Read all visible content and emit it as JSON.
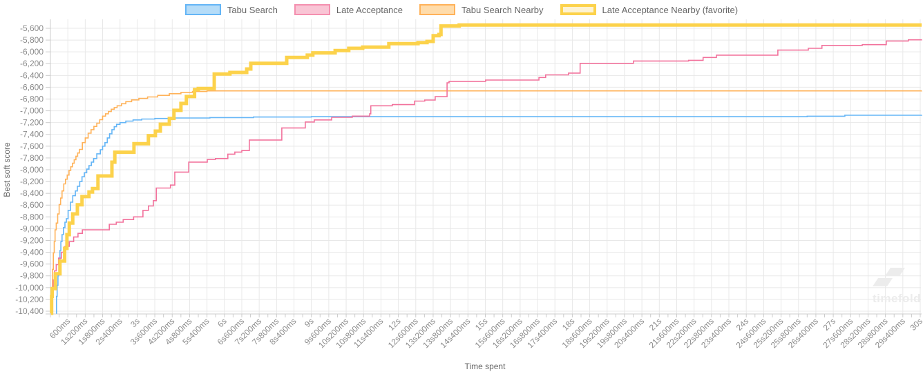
{
  "legend": {
    "items": [
      {
        "label": "Tabu Search",
        "border": "#64b5f6",
        "fill": "#b5dcf8",
        "thick": false
      },
      {
        "label": "Late Acceptance",
        "border": "#f48faf",
        "fill": "#f9c5d5",
        "thick": false
      },
      {
        "label": "Tabu Search Nearby",
        "border": "#ffb259",
        "fill": "#ffdcab",
        "thick": false
      },
      {
        "label": "Late Acceptance Nearby (favorite)",
        "border": "#fcd24b",
        "fill": "#fdf3d2",
        "thick": true
      }
    ]
  },
  "watermark": {
    "text": "timefold"
  },
  "chart_data": {
    "type": "line",
    "subtype": "step-after",
    "title": "",
    "xlabel": "Time spent",
    "ylabel": "Best soft score",
    "grid": true,
    "legend_position": "top",
    "x_axis": {
      "min_seconds": 0,
      "max_seconds": 30,
      "label_interval_ms": 600,
      "tick_labels": [
        "600ms",
        "1s200ms",
        "1s800ms",
        "2s400ms",
        "3s",
        "3s600ms",
        "4s200ms",
        "4s800ms",
        "5s400ms",
        "6s",
        "6s600ms",
        "7s200ms",
        "7s800ms",
        "8s400ms",
        "9s",
        "9s600ms",
        "10s200ms",
        "10s800ms",
        "11s400ms",
        "12s",
        "12s600ms",
        "13s200ms",
        "13s800ms",
        "14s400ms",
        "15s",
        "15s600ms",
        "16s200ms",
        "16s800ms",
        "17s400ms",
        "18s",
        "18s600ms",
        "19s200ms",
        "19s800ms",
        "20s400ms",
        "21s",
        "21s600ms",
        "22s200ms",
        "22s800ms",
        "23s400ms",
        "24s",
        "24s600ms",
        "25s200ms",
        "25s800ms",
        "26s400ms",
        "27s",
        "27s600ms",
        "28s200ms",
        "28s800ms",
        "29s400ms",
        "30s"
      ]
    },
    "y_axis": {
      "max": -5600,
      "min": -10400,
      "step": 200,
      "tick_labels": [
        "-5,600",
        "-5,800",
        "-6,000",
        "-6,200",
        "-6,400",
        "-6,600",
        "-6,800",
        "-7,000",
        "-7,200",
        "-7,400",
        "-7,600",
        "-7,800",
        "-8,000",
        "-8,200",
        "-8,400",
        "-8,600",
        "-8,800",
        "-9,000",
        "-9,200",
        "-9,400",
        "-9,600",
        "-9,800",
        "-10,000",
        "-10,200",
        "-10,400"
      ]
    },
    "series": [
      {
        "name": "Tabu Search Nearby",
        "color": "#ffb259",
        "width": 1.6,
        "points": [
          [
            0.02,
            -10440
          ],
          [
            0.05,
            -10000
          ],
          [
            0.07,
            -9690
          ],
          [
            0.1,
            -9410
          ],
          [
            0.13,
            -9220
          ],
          [
            0.16,
            -9020
          ],
          [
            0.2,
            -8905
          ],
          [
            0.25,
            -8750
          ],
          [
            0.3,
            -8590
          ],
          [
            0.35,
            -8480
          ],
          [
            0.4,
            -8360
          ],
          [
            0.46,
            -8240
          ],
          [
            0.52,
            -8160
          ],
          [
            0.58,
            -8090
          ],
          [
            0.64,
            -8010
          ],
          [
            0.7,
            -7950
          ],
          [
            0.76,
            -7890
          ],
          [
            0.82,
            -7830
          ],
          [
            0.88,
            -7770
          ],
          [
            0.94,
            -7715
          ],
          [
            1.0,
            -7655
          ],
          [
            1.1,
            -7540
          ],
          [
            1.2,
            -7460
          ],
          [
            1.3,
            -7380
          ],
          [
            1.4,
            -7320
          ],
          [
            1.5,
            -7265
          ],
          [
            1.6,
            -7210
          ],
          [
            1.7,
            -7150
          ],
          [
            1.8,
            -7090
          ],
          [
            1.9,
            -7050
          ],
          [
            2.0,
            -7012
          ],
          [
            2.1,
            -6973
          ],
          [
            2.2,
            -6945
          ],
          [
            2.3,
            -6915
          ],
          [
            2.45,
            -6880
          ],
          [
            2.6,
            -6845
          ],
          [
            2.8,
            -6815
          ],
          [
            3.05,
            -6790
          ],
          [
            3.35,
            -6765
          ],
          [
            3.7,
            -6738
          ],
          [
            4.1,
            -6710
          ],
          [
            4.5,
            -6688
          ],
          [
            4.9,
            -6672
          ],
          [
            5.4,
            -6662
          ],
          [
            30.1,
            -6660
          ]
        ]
      },
      {
        "name": "Tabu Search",
        "color": "#64b5f6",
        "width": 1.6,
        "points": [
          [
            0.19,
            -10440
          ],
          [
            0.21,
            -10150
          ],
          [
            0.23,
            -9960
          ],
          [
            0.26,
            -9800
          ],
          [
            0.29,
            -9570
          ],
          [
            0.33,
            -9370
          ],
          [
            0.36,
            -9220
          ],
          [
            0.4,
            -9100
          ],
          [
            0.45,
            -8980
          ],
          [
            0.5,
            -8890
          ],
          [
            0.55,
            -8830
          ],
          [
            0.61,
            -8690
          ],
          [
            0.69,
            -8550
          ],
          [
            0.77,
            -8440
          ],
          [
            0.86,
            -8360
          ],
          [
            0.93,
            -8280
          ],
          [
            1.01,
            -8200
          ],
          [
            1.09,
            -8120
          ],
          [
            1.17,
            -8050
          ],
          [
            1.25,
            -7990
          ],
          [
            1.33,
            -7930
          ],
          [
            1.41,
            -7870
          ],
          [
            1.49,
            -7810
          ],
          [
            1.6,
            -7730
          ],
          [
            1.72,
            -7660
          ],
          [
            1.8,
            -7600
          ],
          [
            1.88,
            -7540
          ],
          [
            1.96,
            -7460
          ],
          [
            2.04,
            -7390
          ],
          [
            2.12,
            -7320
          ],
          [
            2.2,
            -7270
          ],
          [
            2.28,
            -7230
          ],
          [
            2.4,
            -7200
          ],
          [
            2.6,
            -7175
          ],
          [
            2.85,
            -7155
          ],
          [
            3.15,
            -7140
          ],
          [
            3.6,
            -7130
          ],
          [
            4.3,
            -7122
          ],
          [
            5.5,
            -7115
          ],
          [
            7.0,
            -7105
          ],
          [
            9.0,
            -7100
          ],
          [
            26.1,
            -7092
          ],
          [
            27.4,
            -7075
          ],
          [
            30.1,
            -7070
          ]
        ]
      },
      {
        "name": "Late Acceptance",
        "color": "#f2729c",
        "width": 1.6,
        "points": [
          [
            0.05,
            -10440
          ],
          [
            0.07,
            -10020
          ],
          [
            0.1,
            -9870
          ],
          [
            0.14,
            -9715
          ],
          [
            0.2,
            -9610
          ],
          [
            0.28,
            -9500
          ],
          [
            0.38,
            -9400
          ],
          [
            0.5,
            -9300
          ],
          [
            0.65,
            -9220
          ],
          [
            0.8,
            -9140
          ],
          [
            0.95,
            -9080
          ],
          [
            1.1,
            -9020
          ],
          [
            2.03,
            -8925
          ],
          [
            2.27,
            -8890
          ],
          [
            2.51,
            -8845
          ],
          [
            2.87,
            -8800
          ],
          [
            3.19,
            -8690
          ],
          [
            3.38,
            -8615
          ],
          [
            3.55,
            -8525
          ],
          [
            3.65,
            -8310
          ],
          [
            4.14,
            -8260
          ],
          [
            4.29,
            -8040
          ],
          [
            4.77,
            -7870
          ],
          [
            5.41,
            -7825
          ],
          [
            5.69,
            -7810
          ],
          [
            6.12,
            -7735
          ],
          [
            6.36,
            -7700
          ],
          [
            6.6,
            -7675
          ],
          [
            6.86,
            -7495
          ],
          [
            7.98,
            -7290
          ],
          [
            8.79,
            -7190
          ],
          [
            9.1,
            -7155
          ],
          [
            9.7,
            -7110
          ],
          [
            10.41,
            -7090
          ],
          [
            11.01,
            -7050
          ],
          [
            11.05,
            -6915
          ],
          [
            11.79,
            -6895
          ],
          [
            12.56,
            -6835
          ],
          [
            12.91,
            -6817
          ],
          [
            13.27,
            -6760
          ],
          [
            13.68,
            -6525
          ],
          [
            13.75,
            -6500
          ],
          [
            15.01,
            -6478
          ],
          [
            16.85,
            -6435
          ],
          [
            17.08,
            -6390
          ],
          [
            17.87,
            -6360
          ],
          [
            18.27,
            -6195
          ],
          [
            20.11,
            -6155
          ],
          [
            22.01,
            -6143
          ],
          [
            22.51,
            -6095
          ],
          [
            22.97,
            -6056
          ],
          [
            25.09,
            -5970
          ],
          [
            26.14,
            -5940
          ],
          [
            26.61,
            -5890
          ],
          [
            28.0,
            -5877
          ],
          [
            28.83,
            -5815
          ],
          [
            29.59,
            -5795
          ],
          [
            30.1,
            -5790
          ]
        ]
      },
      {
        "name": "Late Acceptance Nearby (favorite)",
        "color": "#fcd24b",
        "width": 5,
        "points": [
          [
            0.02,
            -10440
          ],
          [
            0.04,
            -10150
          ],
          [
            0.06,
            -10017
          ],
          [
            0.17,
            -9764
          ],
          [
            0.33,
            -9549
          ],
          [
            0.49,
            -9334
          ],
          [
            0.57,
            -9100
          ],
          [
            0.65,
            -8905
          ],
          [
            0.77,
            -8749
          ],
          [
            0.93,
            -8593
          ],
          [
            1.09,
            -8456
          ],
          [
            1.33,
            -8378
          ],
          [
            1.45,
            -8319
          ],
          [
            1.64,
            -8105
          ],
          [
            2.12,
            -7871
          ],
          [
            2.22,
            -7703
          ],
          [
            2.88,
            -7559
          ],
          [
            3.38,
            -7422
          ],
          [
            3.62,
            -7344
          ],
          [
            3.79,
            -7227
          ],
          [
            4.1,
            -7129
          ],
          [
            4.26,
            -6992
          ],
          [
            4.5,
            -6875
          ],
          [
            4.69,
            -6758
          ],
          [
            4.97,
            -6640
          ],
          [
            5.1,
            -6622
          ],
          [
            5.65,
            -6376
          ],
          [
            6.19,
            -6349
          ],
          [
            6.77,
            -6291
          ],
          [
            6.91,
            -6193
          ],
          [
            8.15,
            -6095
          ],
          [
            8.86,
            -6056
          ],
          [
            9.05,
            -6017
          ],
          [
            9.82,
            -5978
          ],
          [
            10.29,
            -5939
          ],
          [
            10.77,
            -5919
          ],
          [
            11.67,
            -5861
          ],
          [
            12.68,
            -5842
          ],
          [
            12.99,
            -5822
          ],
          [
            13.2,
            -5725
          ],
          [
            13.4,
            -5705
          ],
          [
            13.47,
            -5560
          ],
          [
            14.1,
            -5545
          ],
          [
            30.1,
            -5545
          ]
        ]
      }
    ]
  }
}
